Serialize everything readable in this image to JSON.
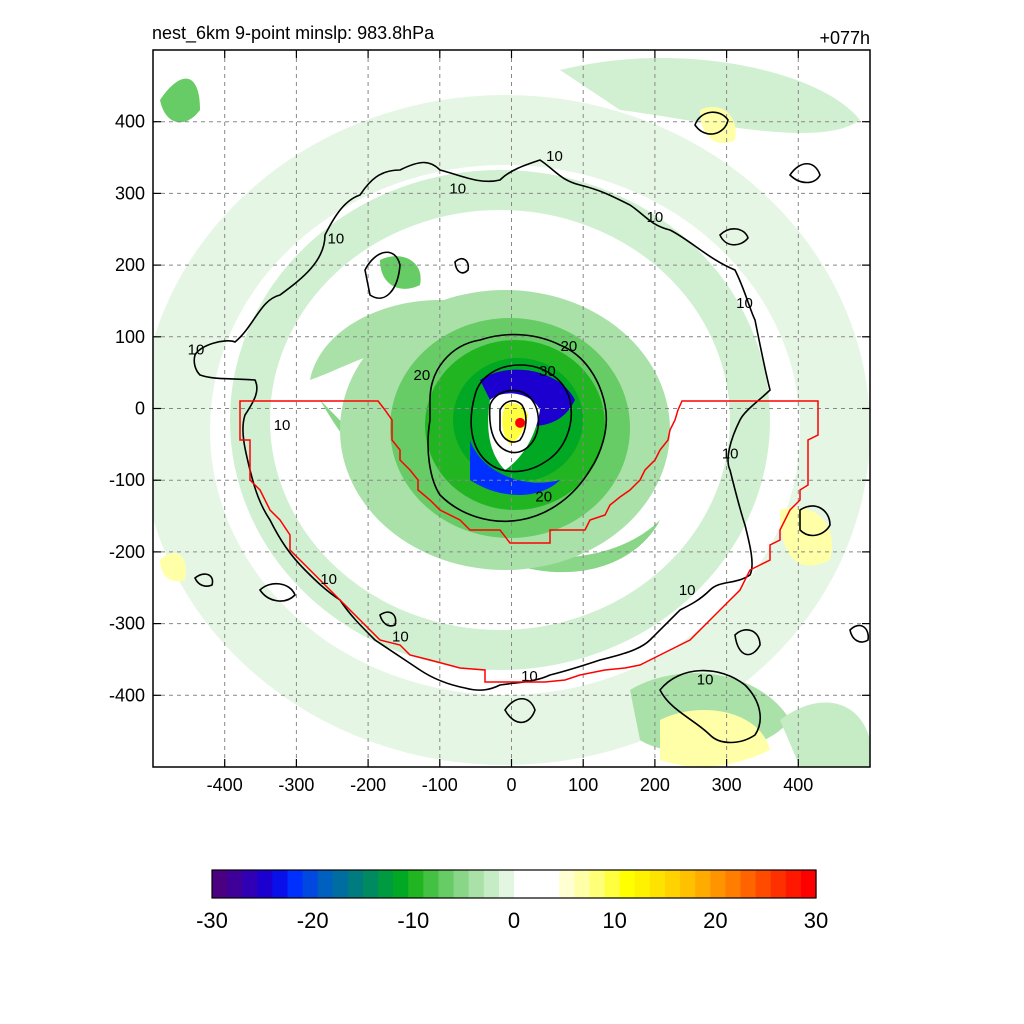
{
  "chart_data": {
    "type": "heatmap",
    "title": "nest_6km  9-point minslp: 983.8hPa",
    "time_label": "+077h",
    "x_ticks": [
      -400,
      -300,
      -200,
      -100,
      0,
      100,
      200,
      300,
      400
    ],
    "y_ticks": [
      400,
      300,
      200,
      100,
      0,
      -100,
      -200,
      -300,
      -400
    ],
    "xlim": [
      -500,
      500
    ],
    "ylim": [
      -500,
      500
    ],
    "grid": true,
    "contour_levels": [
      10,
      20,
      30
    ],
    "contour_labels": [
      {
        "text": "10",
        "x": -245,
        "y": 230
      },
      {
        "text": "10",
        "x": -440,
        "y": 75
      },
      {
        "text": "10",
        "x": -320,
        "y": -30
      },
      {
        "text": "10",
        "x": -75,
        "y": 300
      },
      {
        "text": "10",
        "x": 60,
        "y": 345
      },
      {
        "text": "10",
        "x": 200,
        "y": 260
      },
      {
        "text": "10",
        "x": 325,
        "y": 140
      },
      {
        "text": "10",
        "x": 305,
        "y": -70
      },
      {
        "text": "10",
        "x": 245,
        "y": -260
      },
      {
        "text": "10",
        "x": -255,
        "y": -245
      },
      {
        "text": "10",
        "x": -155,
        "y": -325
      },
      {
        "text": "10",
        "x": 25,
        "y": -380
      },
      {
        "text": "10",
        "x": 270,
        "y": -385
      },
      {
        "text": "20",
        "x": -125,
        "y": 40
      },
      {
        "text": "20",
        "x": 80,
        "y": 80
      },
      {
        "text": "20",
        "x": 45,
        "y": -130
      },
      {
        "text": "30",
        "x": 50,
        "y": 45
      }
    ],
    "center_marker": {
      "x": 12,
      "y": -20,
      "color": "#ff0000"
    },
    "colorbar": {
      "range": [
        -30,
        30
      ],
      "tick_labels": [
        "-30",
        "-20",
        "-10",
        "0",
        "10",
        "20",
        "30"
      ],
      "colors": [
        "#4b0082",
        "#3e0099",
        "#3000b4",
        "#1c00d0",
        "#0a10ea",
        "#0030ff",
        "#0048e0",
        "#0060c0",
        "#006da0",
        "#007b80",
        "#008a60",
        "#009a40",
        "#00a824",
        "#21b521",
        "#44c043",
        "#67cb66",
        "#8ad689",
        "#a9e1a8",
        "#c6ecc5",
        "#e2f6e1",
        "#ffffff",
        "#ffffff",
        "#ffffff",
        "#ffffd2",
        "#ffffa8",
        "#ffff78",
        "#ffff40",
        "#ffff00",
        "#fff200",
        "#ffe300",
        "#ffd200",
        "#ffc000",
        "#ffab00",
        "#ff9400",
        "#ff7d00",
        "#ff6400",
        "#ff4b00",
        "#ff3000",
        "#ff1800",
        "#ff0000"
      ]
    }
  }
}
